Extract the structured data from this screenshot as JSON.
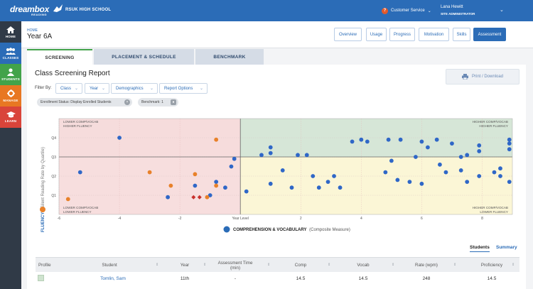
{
  "topbar": {
    "logo_text": "dreambox",
    "logo_sub": "READING",
    "school": "RSUK HIGH SCHOOL",
    "support_label": "Customer Service",
    "user_name": "Lana Hewitt",
    "user_role": "SITE ADMINISTRATOR",
    "brand_color": "#2b6cb7"
  },
  "sidebar": {
    "items": [
      {
        "label": "HOME",
        "icon": "home-icon",
        "color": "#303a47"
      },
      {
        "label": "CLASSES",
        "icon": "classes-icon",
        "color": "#2b6cb7"
      },
      {
        "label": "STUDENTS",
        "icon": "student-icon",
        "color": "#42a34a"
      },
      {
        "label": "MANAGE",
        "icon": "gear-icon",
        "color": "#e87722"
      },
      {
        "label": "LEARN",
        "icon": "graduation-cap-icon",
        "color": "#d9443a"
      }
    ]
  },
  "header": {
    "breadcrumb": "HOME",
    "title": "Year 6A",
    "nav": [
      "Overview",
      "Usage",
      "Progress",
      "Motivation",
      "Skills",
      "Assessment"
    ],
    "active_nav": "Assessment"
  },
  "tabs": {
    "items": [
      "SCREENING",
      "PLACEMENT & SCHEDULE",
      "BENCHMARK"
    ],
    "active": "SCREENING"
  },
  "report": {
    "title": "Class Screening Report",
    "print_label": "Print / Download",
    "filter_label": "Filter By:",
    "filters": [
      "Class",
      "Year",
      "Demographics",
      "Report Options"
    ],
    "chips": [
      "Enrollment Status: Display Enrolled Students",
      "Benchmark: 1"
    ]
  },
  "chart_data": {
    "type": "scatter",
    "xlabel": "COMPREHENSION & VOCABULARY",
    "xlabel_suffix": "(Composite Measure)",
    "ylabel": "FLUENCY",
    "ylabel_suffix": "(Silent Reading Rate by Quartile)",
    "x_ticks": [
      "-6",
      "-4",
      "-2",
      "Year Level",
      "2",
      "4",
      "6",
      "8"
    ],
    "x_tick_values": [
      -6,
      -4,
      -2,
      0,
      2,
      4,
      6,
      8
    ],
    "y_ticks": [
      "Q1",
      "Q2",
      "Q3",
      "Q4"
    ],
    "xlim": [
      -6,
      9
    ],
    "ylim": [
      0,
      5
    ],
    "quadrants": {
      "top_left": [
        "LOWER COMP/VOCAB",
        "HIGHER FLUENCY"
      ],
      "top_right": [
        "HIGHER COMP/VOCAB",
        "HIGHER FLUENCY"
      ],
      "bottom_left": [
        "LOWER COMP/VOCAB",
        "LOWER FLUENCY"
      ],
      "bottom_right": [
        "HIGHER COMP/VOCAB",
        "LOWER FLUENCY"
      ]
    },
    "quadrant_colors": {
      "top_left": "#f6dcdc",
      "top_right": "#d6e6d7",
      "bottom_left": "#f7dede",
      "bottom_right": "#fbf6d6"
    },
    "series": [
      {
        "color": "#2f67c7",
        "points": [
          [
            -4.0,
            4.0
          ],
          [
            -5.3,
            2.2
          ],
          [
            -2.4,
            0.9
          ],
          [
            -1.5,
            1.5
          ],
          [
            -1.0,
            1.0
          ],
          [
            -0.8,
            1.7
          ],
          [
            -0.5,
            1.4
          ],
          [
            -0.3,
            2.5
          ],
          [
            -0.2,
            2.9
          ],
          [
            0.2,
            1.2
          ],
          [
            0.7,
            3.1
          ],
          [
            1.0,
            3.2
          ],
          [
            1.0,
            3.5
          ],
          [
            1.4,
            2.3
          ],
          [
            1.0,
            1.6
          ],
          [
            1.7,
            1.4
          ],
          [
            1.9,
            3.1
          ],
          [
            2.2,
            3.1
          ],
          [
            2.4,
            2.0
          ],
          [
            2.6,
            1.4
          ],
          [
            2.9,
            1.7
          ],
          [
            3.1,
            2.0
          ],
          [
            3.3,
            1.4
          ],
          [
            3.7,
            3.8
          ],
          [
            4.0,
            3.9
          ],
          [
            4.2,
            3.8
          ],
          [
            4.9,
            3.9
          ],
          [
            5.3,
            3.9
          ],
          [
            6.0,
            3.8
          ],
          [
            6.5,
            3.9
          ],
          [
            5.0,
            2.8
          ],
          [
            4.8,
            2.2
          ],
          [
            5.2,
            1.8
          ],
          [
            5.6,
            1.7
          ],
          [
            6.0,
            1.6
          ],
          [
            6.6,
            2.6
          ],
          [
            6.8,
            2.2
          ],
          [
            7.3,
            2.3
          ],
          [
            7.5,
            1.7
          ],
          [
            7.5,
            3.1
          ],
          [
            7.0,
            3.7
          ],
          [
            7.9,
            3.6
          ],
          [
            7.9,
            2.0
          ],
          [
            8.4,
            2.2
          ],
          [
            8.6,
            2.4
          ],
          [
            8.6,
            2.0
          ],
          [
            8.9,
            3.4
          ],
          [
            8.9,
            3.9
          ],
          [
            8.9,
            3.7
          ],
          [
            8.9,
            1.7
          ],
          [
            7.3,
            3.0
          ],
          [
            5.8,
            3.0
          ],
          [
            6.2,
            3.5
          ],
          [
            7.9,
            3.3
          ]
        ]
      },
      {
        "color": "#e8812a",
        "points": [
          [
            -5.7,
            0.8
          ],
          [
            -3.0,
            2.2
          ],
          [
            -1.5,
            2.1
          ],
          [
            -1.1,
            0.9
          ],
          [
            -0.8,
            3.9
          ],
          [
            -0.8,
            1.5
          ],
          [
            -2.3,
            1.5
          ]
        ]
      },
      {
        "color": "#c8312d",
        "points": [
          [
            -1.55,
            0.9
          ],
          [
            -1.35,
            0.9
          ]
        ]
      }
    ]
  },
  "table": {
    "tabs": [
      "Students",
      "Summary"
    ],
    "active_tab": "Students",
    "columns": [
      "Profile",
      "Student",
      "Year",
      "Assessment Time (min)",
      "Comp",
      "Vocab",
      "Rate (wpm)",
      "Proficiency"
    ],
    "rows": [
      {
        "student": "Tomlin, Sam",
        "year": "11th",
        "time": "-",
        "comp": "14.5",
        "vocab": "14.5",
        "rate": "248",
        "proficiency": "14.5",
        "profile_color": "#cfe3cf"
      }
    ]
  }
}
